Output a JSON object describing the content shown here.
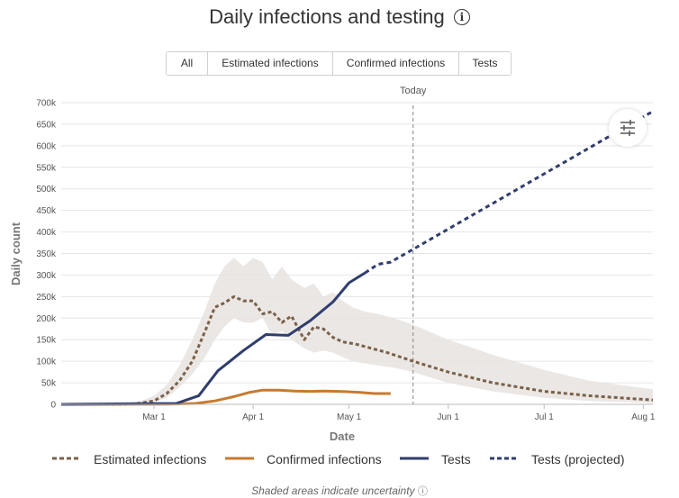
{
  "page": {
    "title": "Daily infections and testing",
    "info_glyph": "i",
    "footnote": "Shaded areas indicate uncertainty",
    "footnote_icon": "info-icon"
  },
  "filters": [
    {
      "label": "All",
      "active": true
    },
    {
      "label": "Estimated infections",
      "active": false
    },
    {
      "label": "Confirmed infections",
      "active": false
    },
    {
      "label": "Tests",
      "active": false
    }
  ],
  "colors": {
    "estimated": "#7a6148",
    "confirmed": "#c77a2e",
    "tests": "#303e6e",
    "band": "#e8e3e0",
    "active_filter": "#79c27a",
    "grid": "#e6e6e6"
  },
  "chart_data": {
    "type": "line",
    "title": "Daily infections and testing",
    "xlabel": "Date",
    "ylabel": "Daily count",
    "xlim": [
      "2020-02-01",
      "2020-08-04"
    ],
    "ylim": [
      0,
      700000
    ],
    "x_ticks": [
      {
        "date": "2020-03-01",
        "label": "Mar 1"
      },
      {
        "date": "2020-04-01",
        "label": "Apr 1"
      },
      {
        "date": "2020-05-01",
        "label": "May 1"
      },
      {
        "date": "2020-06-01",
        "label": "Jun 1"
      },
      {
        "date": "2020-07-01",
        "label": "Jul 1"
      },
      {
        "date": "2020-08-01",
        "label": "Aug 1"
      }
    ],
    "y_ticks": [
      {
        "value": 0,
        "label": "0"
      },
      {
        "value": 50000,
        "label": "50k"
      },
      {
        "value": 100000,
        "label": "100k"
      },
      {
        "value": 150000,
        "label": "150k"
      },
      {
        "value": 200000,
        "label": "200k"
      },
      {
        "value": 250000,
        "label": "250k"
      },
      {
        "value": 300000,
        "label": "300k"
      },
      {
        "value": 350000,
        "label": "350k"
      },
      {
        "value": 400000,
        "label": "400k"
      },
      {
        "value": 450000,
        "label": "450k"
      },
      {
        "value": 500000,
        "label": "500k"
      },
      {
        "value": 550000,
        "label": "550k"
      },
      {
        "value": 600000,
        "label": "600k"
      },
      {
        "value": 650000,
        "label": "650k"
      },
      {
        "value": 700000,
        "label": "700k"
      }
    ],
    "grid": true,
    "annotations": [
      {
        "date": "2020-05-21",
        "label": "Today",
        "style": "dashed-vertical"
      }
    ],
    "uncertainty_band": {
      "x": [
        "2020-02-01",
        "2020-02-15",
        "2020-02-22",
        "2020-02-26",
        "2020-03-01",
        "2020-03-05",
        "2020-03-09",
        "2020-03-13",
        "2020-03-17",
        "2020-03-20",
        "2020-03-23",
        "2020-03-26",
        "2020-03-29",
        "2020-04-01",
        "2020-04-04",
        "2020-04-07",
        "2020-04-10",
        "2020-04-13",
        "2020-04-17",
        "2020-04-20",
        "2020-04-23",
        "2020-04-26",
        "2020-04-29",
        "2020-05-02",
        "2020-05-06",
        "2020-05-10",
        "2020-05-15",
        "2020-05-21",
        "2020-06-01",
        "2020-06-15",
        "2020-07-01",
        "2020-07-15",
        "2020-08-04"
      ],
      "upper": [
        0,
        0,
        3000,
        8000,
        20000,
        45000,
        90000,
        150000,
        220000,
        280000,
        320000,
        340000,
        320000,
        340000,
        330000,
        290000,
        320000,
        290000,
        270000,
        280000,
        250000,
        260000,
        240000,
        225000,
        215000,
        210000,
        200000,
        185000,
        150000,
        115000,
        80000,
        55000,
        35000
      ],
      "lower": [
        0,
        0,
        0,
        2000,
        5000,
        15000,
        40000,
        70000,
        110000,
        150000,
        180000,
        200000,
        190000,
        190000,
        200000,
        160000,
        170000,
        150000,
        130000,
        120000,
        125000,
        120000,
        110000,
        100000,
        95000,
        90000,
        85000,
        75000,
        50000,
        30000,
        15000,
        8000,
        3000
      ]
    },
    "series": [
      {
        "name": "Estimated infections",
        "style": "dotted",
        "x": [
          "2020-02-01",
          "2020-02-20",
          "2020-02-25",
          "2020-03-01",
          "2020-03-05",
          "2020-03-09",
          "2020-03-13",
          "2020-03-17",
          "2020-03-20",
          "2020-03-23",
          "2020-03-26",
          "2020-03-29",
          "2020-04-01",
          "2020-04-04",
          "2020-04-07",
          "2020-04-10",
          "2020-04-13",
          "2020-04-17",
          "2020-04-20",
          "2020-04-23",
          "2020-04-26",
          "2020-04-29",
          "2020-05-03",
          "2020-05-08",
          "2020-05-13",
          "2020-05-21",
          "2020-06-01",
          "2020-06-15",
          "2020-07-01",
          "2020-07-15",
          "2020-08-04"
        ],
        "y": [
          0,
          0,
          2000,
          8000,
          25000,
          55000,
          100000,
          170000,
          225000,
          235000,
          250000,
          240000,
          240000,
          210000,
          215000,
          190000,
          205000,
          150000,
          180000,
          175000,
          155000,
          145000,
          140000,
          130000,
          120000,
          100000,
          75000,
          50000,
          30000,
          20000,
          10000
        ]
      },
      {
        "name": "Confirmed infections",
        "style": "solid",
        "x": [
          "2020-02-01",
          "2020-03-06",
          "2020-03-14",
          "2020-03-20",
          "2020-03-26",
          "2020-03-31",
          "2020-04-04",
          "2020-04-09",
          "2020-04-14",
          "2020-04-19",
          "2020-04-23",
          "2020-04-28",
          "2020-05-04",
          "2020-05-09",
          "2020-05-14"
        ],
        "y": [
          0,
          500,
          2000,
          8000,
          18000,
          28000,
          33000,
          33000,
          31000,
          30000,
          31000,
          30000,
          28000,
          25000,
          25000
        ]
      },
      {
        "name": "Tests",
        "style": "solid",
        "x": [
          "2020-02-01",
          "2020-03-08",
          "2020-03-15",
          "2020-03-21",
          "2020-03-29",
          "2020-04-05",
          "2020-04-12",
          "2020-04-19",
          "2020-04-26",
          "2020-05-01",
          "2020-05-06"
        ],
        "y": [
          0,
          2000,
          20000,
          78000,
          125000,
          162000,
          160000,
          195000,
          238000,
          282000,
          305000
        ]
      },
      {
        "name": "Tests (projected)",
        "style": "dashed",
        "x": [
          "2020-05-06",
          "2020-05-10",
          "2020-05-14",
          "2020-08-04"
        ],
        "y": [
          305000,
          325000,
          330000,
          680000
        ]
      }
    ]
  }
}
